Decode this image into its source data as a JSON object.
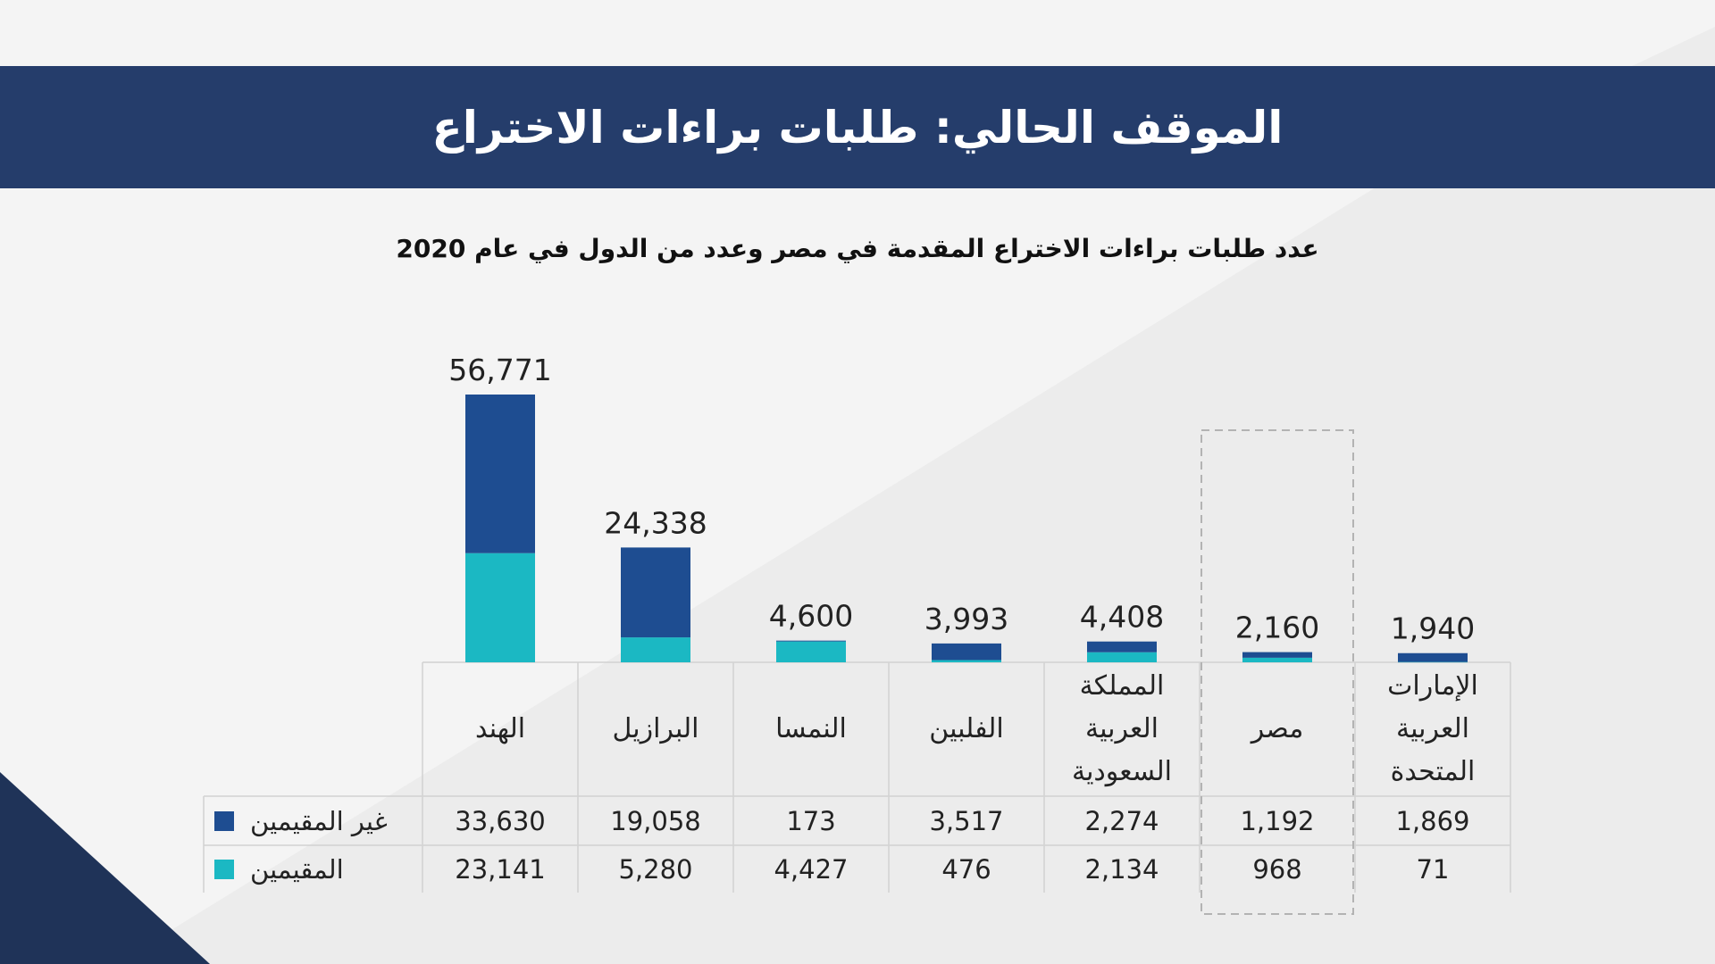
{
  "header": {
    "title": "الموقف الحالي: طلبات براءات الاختراع"
  },
  "colors": {
    "non_residents": "#1e4d91",
    "residents": "#1bb8c3",
    "header_bg": "#253d6b",
    "corner": "#1f3358"
  },
  "chart_data": {
    "type": "bar",
    "stacked": true,
    "title": "عدد طلبات براءات الاختراع المقدمة في مصر وعدد من الدول في عام 2020",
    "categories": [
      "الهند",
      "البرازيل",
      "النمسا",
      "الفلبين",
      "المملكة العربية السعودية",
      "مصر",
      "الإمارات العربية المتحدة"
    ],
    "category_lines": [
      [
        "الهند"
      ],
      [
        "البرازيل"
      ],
      [
        "النمسا"
      ],
      [
        "الفلبين"
      ],
      [
        "المملكة",
        "العربية",
        "السعودية"
      ],
      [
        "مصر"
      ],
      [
        "الإمارات",
        "العربية",
        "المتحدة"
      ]
    ],
    "totals_labels": [
      "56,771",
      "24,338",
      "4,600",
      "3,993",
      "4,408",
      "2,160",
      "1,940"
    ],
    "series": [
      {
        "name": "غير المقيمين",
        "values": [
          33630,
          19058,
          173,
          3517,
          2274,
          1192,
          1869
        ],
        "labels": [
          "33,630",
          "19,058",
          "173",
          "3,517",
          "2,274",
          "1,192",
          "1,869"
        ]
      },
      {
        "name": "المقيمين",
        "values": [
          23141,
          5280,
          4427,
          476,
          2134,
          968,
          71
        ],
        "labels": [
          "23,141",
          "5,280",
          "4,427",
          "476",
          "2,134",
          "968",
          "71"
        ]
      }
    ],
    "highlighted_category": "مصر",
    "ylim": [
      0,
      56771
    ],
    "legend": "table-left"
  }
}
